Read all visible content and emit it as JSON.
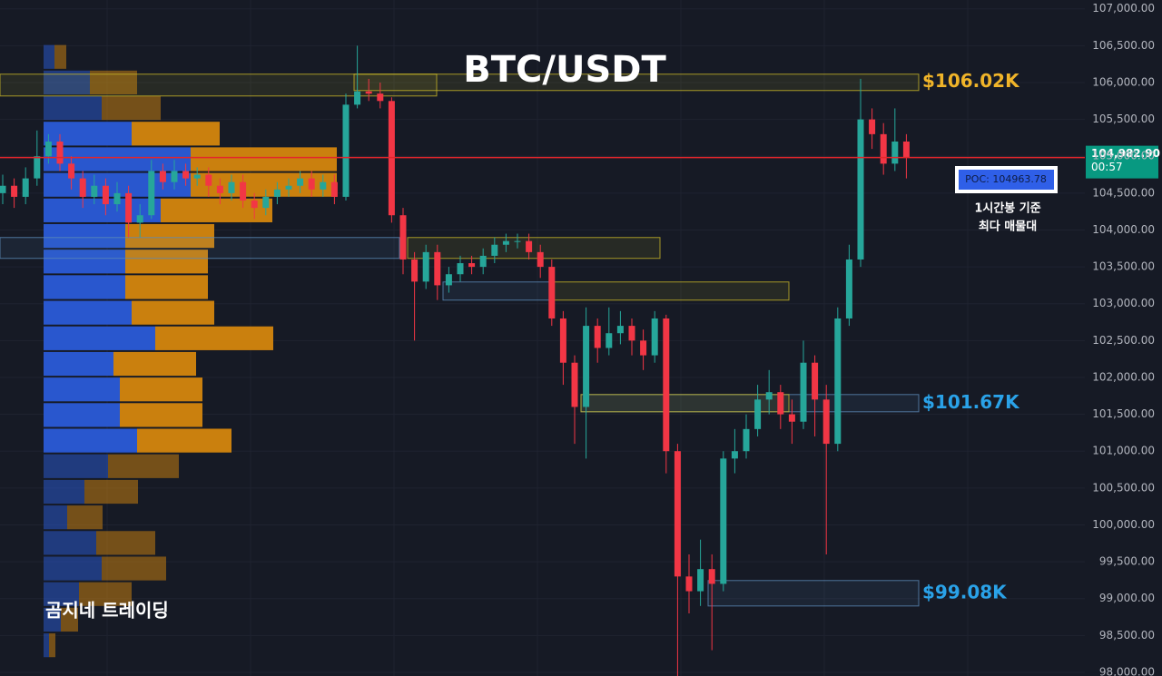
{
  "chart_data": {
    "type": "candlestick",
    "title": "BTC/USDT",
    "watermark": "곰지네 트레이딩",
    "up_color": "#26a69a",
    "down_color": "#f23645",
    "ylim": [
      97950,
      107120
    ],
    "yticks": [
      {
        "value": 98000,
        "label": "98,000.00"
      },
      {
        "value": 98500,
        "label": "98,500.00"
      },
      {
        "value": 99000,
        "label": "99,000.00"
      },
      {
        "value": 99500,
        "label": "99,500.00"
      },
      {
        "value": 100000,
        "label": "100,000.00"
      },
      {
        "value": 100500,
        "label": "100,500.00"
      },
      {
        "value": 101000,
        "label": "101,000.00"
      },
      {
        "value": 101500,
        "label": "101,500.00"
      },
      {
        "value": 102000,
        "label": "102,000.00"
      },
      {
        "value": 102500,
        "label": "102,500.00"
      },
      {
        "value": 103000,
        "label": "103,000.00"
      },
      {
        "value": 103500,
        "label": "103,500.00"
      },
      {
        "value": 104000,
        "label": "104,000.00"
      },
      {
        "value": 104500,
        "label": "104,500.00"
      },
      {
        "value": 105000,
        "label": "105,000.00"
      },
      {
        "value": 105500,
        "label": "105,500.00"
      },
      {
        "value": 106000,
        "label": "106,000.00"
      },
      {
        "value": 106500,
        "label": "106,500.00"
      },
      {
        "value": 107000,
        "label": "107,000.00"
      }
    ],
    "grid": true,
    "open": [
      104500,
      104600,
      104450,
      104700,
      105000,
      105200,
      104900,
      104700,
      104450,
      104600,
      104350,
      104500,
      104100,
      104200,
      104800,
      104650,
      104800,
      104700,
      104750,
      104600,
      104500,
      104650,
      104400,
      104300,
      104450,
      104550,
      104600,
      104700,
      104550,
      104650,
      104450,
      105700,
      105880,
      105850,
      105750,
      104200,
      103600,
      103300,
      103700,
      103250,
      103400,
      103550,
      103500,
      103650,
      103800,
      103850,
      103850,
      103700,
      103500,
      102800,
      102200,
      101600,
      102700,
      102400,
      102600,
      102700,
      102500,
      102300,
      102800,
      101000,
      99300,
      99100,
      99400,
      99200,
      100900,
      101000,
      101300,
      101700,
      101800,
      101500,
      101400,
      102200,
      101700,
      101100,
      102800,
      103600,
      105500,
      105300,
      104900,
      105200
    ],
    "high": [
      104750,
      104700,
      104850,
      105350,
      105300,
      105300,
      105000,
      104800,
      104750,
      104700,
      104650,
      104600,
      104350,
      104950,
      104900,
      104950,
      104900,
      104850,
      104850,
      104700,
      104750,
      104750,
      104500,
      104550,
      104650,
      104700,
      104800,
      104800,
      104750,
      104750,
      105850,
      106500,
      106050,
      106000,
      105800,
      104300,
      103700,
      103800,
      103800,
      103500,
      103650,
      103650,
      103750,
      103900,
      103950,
      103950,
      103950,
      103800,
      103600,
      102900,
      102300,
      102950,
      102800,
      102950,
      102900,
      102800,
      102650,
      102900,
      102850,
      101100,
      99600,
      99800,
      99600,
      101000,
      101300,
      101500,
      101900,
      102100,
      101900,
      101700,
      102500,
      102300,
      101900,
      102950,
      103800,
      106050,
      105650,
      105450,
      105650,
      105300
    ],
    "low": [
      104350,
      104300,
      104350,
      104600,
      104900,
      104800,
      104550,
      104300,
      104350,
      104200,
      104250,
      103900,
      103900,
      104150,
      104550,
      104550,
      104600,
      104600,
      104450,
      104350,
      104400,
      104300,
      104150,
      104200,
      104350,
      104450,
      104500,
      104450,
      104450,
      104350,
      104400,
      105650,
      105750,
      105650,
      104100,
      103400,
      102500,
      103200,
      103050,
      103150,
      103300,
      103400,
      103400,
      103550,
      103700,
      103750,
      103600,
      103350,
      102700,
      101900,
      101100,
      100900,
      102200,
      102300,
      102450,
      102300,
      102100,
      102200,
      100700,
      97950,
      98800,
      98900,
      98300,
      99100,
      100700,
      100900,
      101200,
      101500,
      101300,
      101100,
      101300,
      101200,
      99600,
      101000,
      102700,
      103500,
      105100,
      104750,
      104800,
      104700
    ],
    "close": [
      104600,
      104450,
      104700,
      105000,
      105200,
      104900,
      104700,
      104450,
      104600,
      104350,
      104500,
      104100,
      104200,
      104800,
      104650,
      104800,
      104700,
      104750,
      104600,
      104500,
      104650,
      104400,
      104300,
      104450,
      104550,
      104600,
      104700,
      104550,
      104650,
      104450,
      105700,
      105880,
      105850,
      105750,
      104200,
      103600,
      103300,
      103700,
      103250,
      103400,
      103550,
      103500,
      103650,
      103800,
      103850,
      103850,
      103700,
      103500,
      102800,
      102200,
      101600,
      102700,
      102400,
      102600,
      102700,
      102500,
      102300,
      102800,
      101000,
      99300,
      99100,
      99400,
      99200,
      100900,
      101000,
      101300,
      101700,
      101800,
      101500,
      101400,
      102200,
      101700,
      101100,
      102800,
      103600,
      105500,
      105300,
      104900,
      105200,
      104980
    ],
    "volume_profile": {
      "prices": [
        106348,
        106001,
        105654,
        105307,
        104960,
        104613,
        104266,
        103919,
        103572,
        103225,
        102878,
        102531,
        102184,
        101837,
        101490,
        101143,
        100796,
        100449,
        100102,
        99755,
        99408,
        99061,
        98714,
        98367
      ],
      "step": 347,
      "buy": [
        12,
        51,
        64,
        97,
        162,
        162,
        129,
        90,
        90,
        90,
        97,
        123,
        77,
        84,
        84,
        103,
        71,
        45,
        26,
        58,
        64,
        39,
        19,
        6
      ],
      "sell": [
        13,
        52,
        65,
        97,
        161,
        161,
        123,
        98,
        91,
        91,
        91,
        130,
        91,
        91,
        91,
        104,
        78,
        59,
        39,
        65,
        71,
        58,
        19,
        7
      ],
      "buy_color": "#2a5bd7",
      "sell_color": "#d4860d"
    },
    "zones": [
      {
        "top": 106114,
        "bottom": 105818,
        "color": "#c8b628"
      },
      {
        "top": 106114,
        "bottom": 105892,
        "color": "#c8b628",
        "label": "$106.02K",
        "label_color": "#f0b429"
      },
      {
        "top": 103898,
        "bottom": 103615,
        "color": "#5b89b8"
      },
      {
        "top": 103898,
        "bottom": 103615,
        "color": "#c8b628"
      },
      {
        "top": 103295,
        "bottom": 103049,
        "color": "#5b89b8"
      },
      {
        "top": 103295,
        "bottom": 103049,
        "color": "#c8b628"
      },
      {
        "top": 101768,
        "bottom": 101534,
        "color": "#5b89b8",
        "label": "$101.67K",
        "label_color": "#2aa2e8"
      },
      {
        "top": 101768,
        "bottom": 101534,
        "color": "#c8b628"
      },
      {
        "top": 99245,
        "bottom": 98900,
        "color": "#5b89b8",
        "label": "$99.08K",
        "label_color": "#2aa2e8"
      }
    ],
    "last_price": {
      "value": 104982.9,
      "label": "104,982.90"
    },
    "countdown": "00:57",
    "price_line_color": "#e3262b",
    "poc_label": "POC: 104963.78",
    "poc_note": [
      "1시간봉 기준",
      "최다 매물대"
    ]
  }
}
